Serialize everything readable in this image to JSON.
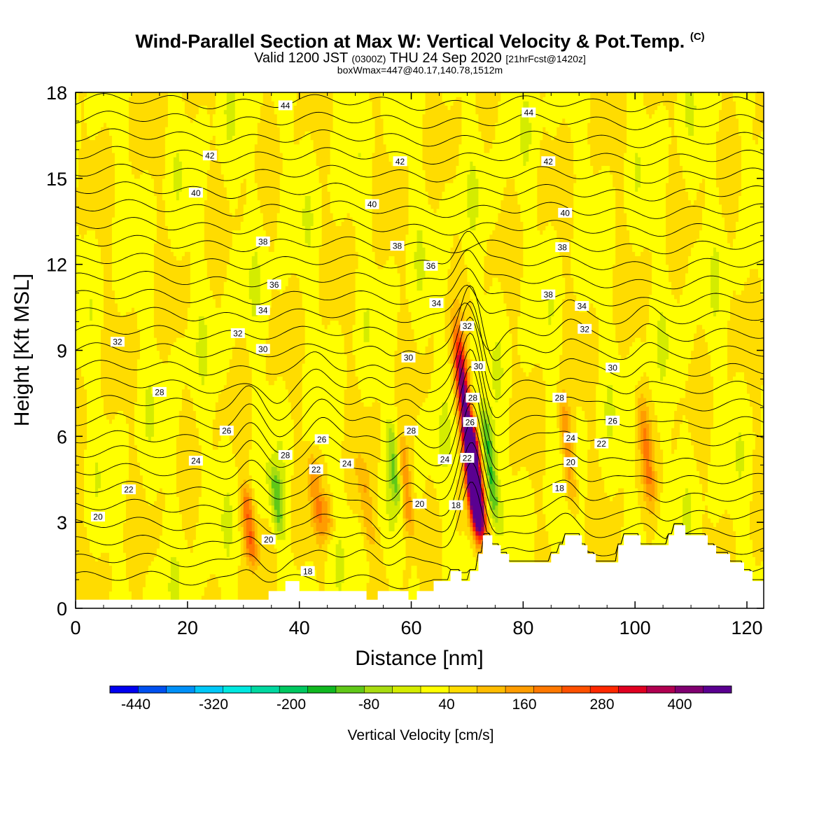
{
  "header": {
    "title": "Wind-Parallel Section at Max W: Vertical Velocity & Pot.Temp.",
    "copyright": "(C)",
    "valid_main": "Valid 1200 JST",
    "valid_utc": "(0300Z)",
    "valid_date": "THU 24 Sep 2020",
    "forecast": "[21hrFcst@1420z]",
    "boxline": "boxWmax=447@40.17,140.78,1512m"
  },
  "chart_data": {
    "type": "heatmap",
    "xlabel": "Distance [nm]",
    "ylabel": "Height [Kft MSL]",
    "xlim": [
      0,
      123
    ],
    "ylim": [
      0,
      18
    ],
    "xticks": [
      0,
      20,
      40,
      60,
      80,
      100,
      120
    ],
    "yticks": [
      0,
      3,
      6,
      9,
      12,
      15,
      18
    ],
    "colorbar": {
      "label": "Vertical Velocity [cm/s]",
      "tick_labels": [
        "-440",
        "-320",
        "-200",
        "-80",
        "40",
        "160",
        "280",
        "400"
      ],
      "tick_values": [
        -440,
        -320,
        -200,
        -80,
        40,
        160,
        280,
        400
      ],
      "bounds": [
        -480,
        480
      ],
      "step": 40,
      "colors": [
        "#0000f0",
        "#0050f0",
        "#0090f8",
        "#00c8f8",
        "#00e8e0",
        "#00d8a0",
        "#00c860",
        "#10b820",
        "#60c818",
        "#a8dc10",
        "#d4ec00",
        "#ffff00",
        "#ffdc00",
        "#ffbc00",
        "#ff9c00",
        "#ff7800",
        "#ff5000",
        "#ff2800",
        "#e00020",
        "#b00050",
        "#800070",
        "#5a0090"
      ]
    },
    "field_description": "shaded vertical velocity cross-section with potential temperature contours",
    "updraft_cores": [
      {
        "x": 31,
        "y_top": 4.3,
        "y_bottom": 1.5,
        "w": 160
      },
      {
        "x": 36,
        "y_top": 5.0,
        "y_bottom": 2.5,
        "w": -120
      },
      {
        "x": 43,
        "y_top": 5.5,
        "y_bottom": 2.3,
        "w": 100
      },
      {
        "x": 45,
        "y_top": 4.0,
        "y_bottom": 2.5,
        "w": 80
      },
      {
        "x": 52,
        "y_top": 5.2,
        "y_bottom": 2.0,
        "w": 80
      },
      {
        "x": 57,
        "y_top": 6.5,
        "y_bottom": 3.5,
        "w": -100
      },
      {
        "x": 59,
        "y_top": 6.0,
        "y_bottom": 2.5,
        "w": 120
      },
      {
        "x": 70,
        "y_top": 9.5,
        "y_bottom": 2.8,
        "w": 380
      },
      {
        "x": 71.5,
        "y_top": 6.5,
        "y_bottom": 2.5,
        "w": 440
      },
      {
        "x": 74,
        "y_top": 7.0,
        "y_bottom": 3.0,
        "w": -180
      },
      {
        "x": 88,
        "y_top": 7.5,
        "y_bottom": 3.5,
        "w": 120
      },
      {
        "x": 102,
        "y_top": 7.5,
        "y_bottom": 3.5,
        "w": 100
      }
    ],
    "contour_labels": [
      {
        "text": "44",
        "x": 37.5,
        "y": 17.55
      },
      {
        "text": "44",
        "x": 81,
        "y": 17.3
      },
      {
        "text": "42",
        "x": 24,
        "y": 15.8
      },
      {
        "text": "42",
        "x": 58,
        "y": 15.6
      },
      {
        "text": "42",
        "x": 84.5,
        "y": 15.6
      },
      {
        "text": "40",
        "x": 21.5,
        "y": 14.5
      },
      {
        "text": "40",
        "x": 53,
        "y": 14.1
      },
      {
        "text": "40",
        "x": 87.5,
        "y": 13.8
      },
      {
        "text": "38",
        "x": 33.5,
        "y": 12.8
      },
      {
        "text": "38",
        "x": 57.5,
        "y": 12.65
      },
      {
        "text": "38",
        "x": 87,
        "y": 12.6
      },
      {
        "text": "36",
        "x": 35.5,
        "y": 11.3
      },
      {
        "text": "36",
        "x": 63.5,
        "y": 11.95
      },
      {
        "text": "34",
        "x": 33.5,
        "y": 10.4
      },
      {
        "text": "34",
        "x": 64.5,
        "y": 10.65
      },
      {
        "text": "34",
        "x": 90.5,
        "y": 10.55
      },
      {
        "text": "38",
        "x": 84.5,
        "y": 10.95
      },
      {
        "text": "32",
        "x": 7.5,
        "y": 9.3
      },
      {
        "text": "32",
        "x": 29,
        "y": 9.6
      },
      {
        "text": "32",
        "x": 70,
        "y": 9.85
      },
      {
        "text": "32",
        "x": 91,
        "y": 9.75
      },
      {
        "text": "30",
        "x": 33.5,
        "y": 9.05
      },
      {
        "text": "30",
        "x": 59.5,
        "y": 8.75
      },
      {
        "text": "30",
        "x": 72,
        "y": 8.45
      },
      {
        "text": "30",
        "x": 96,
        "y": 8.4
      },
      {
        "text": "28",
        "x": 15,
        "y": 7.55
      },
      {
        "text": "28",
        "x": 71,
        "y": 7.35
      },
      {
        "text": "28",
        "x": 86.5,
        "y": 7.35
      },
      {
        "text": "28",
        "x": 60,
        "y": 6.2
      },
      {
        "text": "28",
        "x": 37.5,
        "y": 5.35
      },
      {
        "text": "26",
        "x": 27,
        "y": 6.2
      },
      {
        "text": "26",
        "x": 70.5,
        "y": 6.5
      },
      {
        "text": "26",
        "x": 96,
        "y": 6.55
      },
      {
        "text": "26",
        "x": 44,
        "y": 5.9
      },
      {
        "text": "24",
        "x": 21.5,
        "y": 5.15
      },
      {
        "text": "24",
        "x": 48.5,
        "y": 5.05
      },
      {
        "text": "24",
        "x": 66,
        "y": 5.2
      },
      {
        "text": "24",
        "x": 88.5,
        "y": 5.95
      },
      {
        "text": "22",
        "x": 9.5,
        "y": 4.15
      },
      {
        "text": "22",
        "x": 43,
        "y": 4.85
      },
      {
        "text": "22",
        "x": 70,
        "y": 5.25
      },
      {
        "text": "22",
        "x": 94,
        "y": 5.75
      },
      {
        "text": "20",
        "x": 4,
        "y": 3.2
      },
      {
        "text": "20",
        "x": 34.5,
        "y": 2.4
      },
      {
        "text": "20",
        "x": 61.5,
        "y": 3.65
      },
      {
        "text": "20",
        "x": 88.5,
        "y": 5.1
      },
      {
        "text": "18",
        "x": 41.5,
        "y": 1.3
      },
      {
        "text": "18",
        "x": 68,
        "y": 3.6
      },
      {
        "text": "18",
        "x": 86.5,
        "y": 4.2
      }
    ]
  }
}
